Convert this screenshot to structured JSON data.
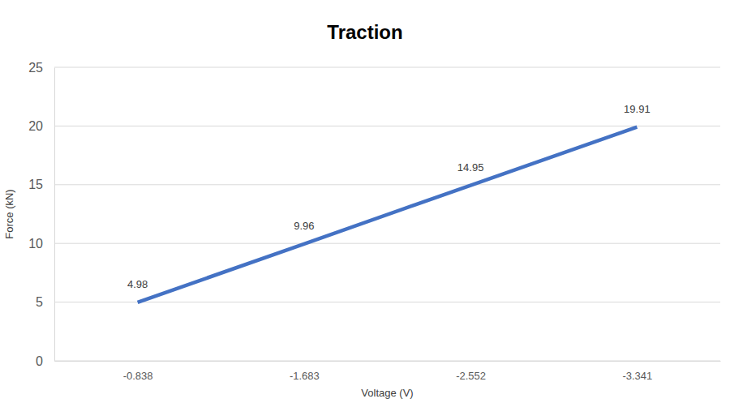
{
  "chart_data": {
    "type": "line",
    "title": "Traction",
    "x_label": "Voltage (V)",
    "y_label": "Force (kN)",
    "categories": [
      "-0.838",
      "-1.683",
      "-2.552",
      "-3.341"
    ],
    "values": [
      4.98,
      9.96,
      14.95,
      19.91
    ],
    "color": "#4472c4",
    "ylim": [
      0,
      25
    ],
    "yticks": [
      0,
      5,
      10,
      15,
      20,
      25
    ],
    "grid": true,
    "data_labels": true
  }
}
